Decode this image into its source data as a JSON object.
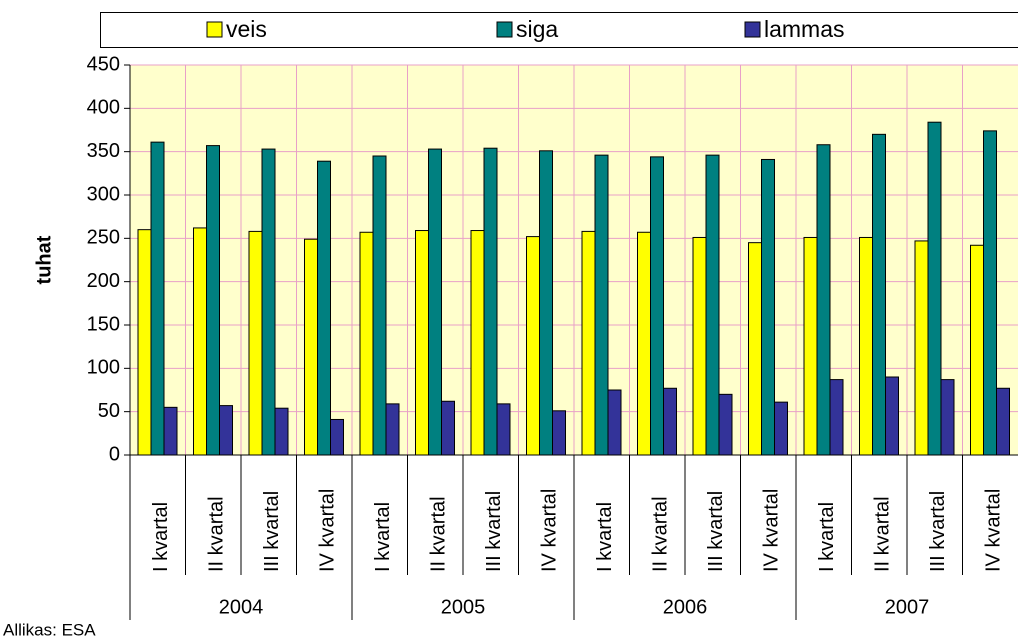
{
  "chart_data": {
    "type": "bar",
    "y_label": "tuhat",
    "source": "Allikas: ESA",
    "categories": [
      "I kvartal",
      "II kvartal",
      "III kvartal",
      "IV kvartal",
      "I kvartal",
      "II kvartal",
      "III kvartal",
      "IV kvartal",
      "I kvartal",
      "II kvartal",
      "III kvartal",
      "IV kvartal",
      "I kvartal",
      "II kvartal",
      "III kvartal",
      "IV kvartal"
    ],
    "category_groups": [
      "2004",
      "2005",
      "2006",
      "2007"
    ],
    "series": [
      {
        "name": "veis",
        "color": "#ffff00",
        "values": [
          260,
          262,
          258,
          249,
          257,
          259,
          259,
          252,
          258,
          257,
          251,
          245,
          251,
          251,
          247,
          242
        ]
      },
      {
        "name": "siga",
        "color": "#008080",
        "values": [
          361,
          357,
          353,
          339,
          345,
          353,
          354,
          351,
          346,
          344,
          346,
          341,
          358,
          370,
          384,
          374
        ]
      },
      {
        "name": "lammas",
        "color": "#333399",
        "values": [
          55,
          57,
          54,
          41,
          59,
          62,
          59,
          51,
          75,
          77,
          70,
          61,
          87,
          90,
          87,
          77
        ]
      }
    ],
    "ylim": [
      0,
      450
    ],
    "yticks": [
      0,
      50,
      100,
      150,
      200,
      250,
      300,
      350,
      400,
      450
    ],
    "grid": true,
    "legend": "top"
  }
}
